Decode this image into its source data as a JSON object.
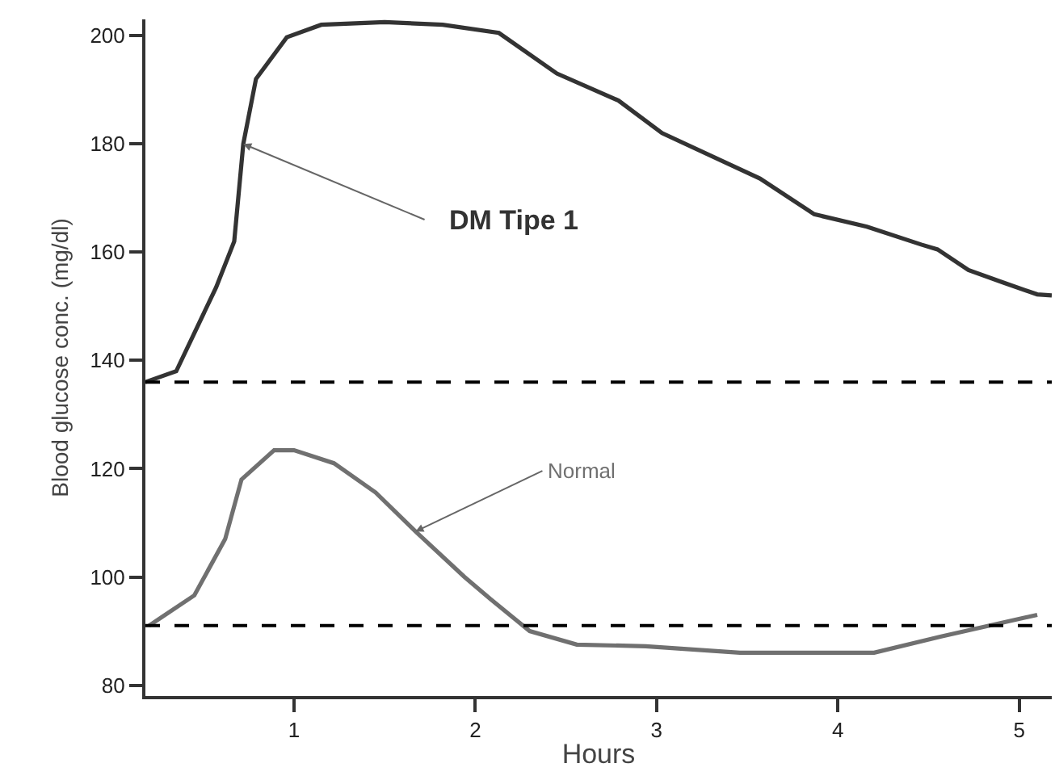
{
  "chart_data": {
    "type": "line",
    "xlabel": "Hours",
    "ylabel": "Blood glucose conc. (mg/dl)",
    "xlim": [
      0.18,
      5.18
    ],
    "xticks": [
      1,
      2,
      3,
      4,
      5
    ],
    "ylim": [
      78,
      203
    ],
    "yticks": [
      80,
      100,
      120,
      140,
      160,
      180,
      200
    ],
    "grid": false,
    "legend": false,
    "marker": "none",
    "line_style": "solid",
    "series": [
      {
        "name": "DM Tipe 1",
        "color": "#333333",
        "x": [
          0.18,
          0.35,
          0.57,
          0.67,
          0.72,
          0.79,
          0.96,
          1.15,
          1.5,
          1.82,
          2.13,
          2.45,
          2.79,
          3.03,
          3.57,
          3.87,
          4.16,
          4.46,
          4.55,
          4.72,
          4.91,
          5.1,
          5.18
        ],
        "values": [
          136,
          138,
          153.5,
          162,
          180,
          192,
          199.7,
          202,
          202.5,
          202,
          200.5,
          193,
          188,
          182,
          173.6,
          167,
          164.7,
          161.4,
          160.5,
          156.7,
          154.4,
          152.2,
          152
        ]
      },
      {
        "name": "Normal",
        "color": "#707070",
        "x": [
          0.2,
          0.45,
          0.62,
          0.71,
          0.89,
          1.0,
          1.22,
          1.45,
          1.67,
          1.94,
          2.08,
          2.3,
          2.56,
          2.94,
          3.46,
          4.2,
          4.57,
          5.1
        ],
        "values": [
          91,
          96.6,
          107,
          118,
          123.4,
          123.4,
          121,
          115.6,
          108.4,
          100,
          96,
          90,
          87.5,
          87.2,
          86,
          86,
          89,
          93
        ]
      }
    ],
    "ref_lines": [
      {
        "axis": "y",
        "value": 136,
        "color": "#000000",
        "line_style": "dashed"
      },
      {
        "axis": "y",
        "value": 91,
        "color": "#000000",
        "line_style": "dashed"
      }
    ]
  }
}
